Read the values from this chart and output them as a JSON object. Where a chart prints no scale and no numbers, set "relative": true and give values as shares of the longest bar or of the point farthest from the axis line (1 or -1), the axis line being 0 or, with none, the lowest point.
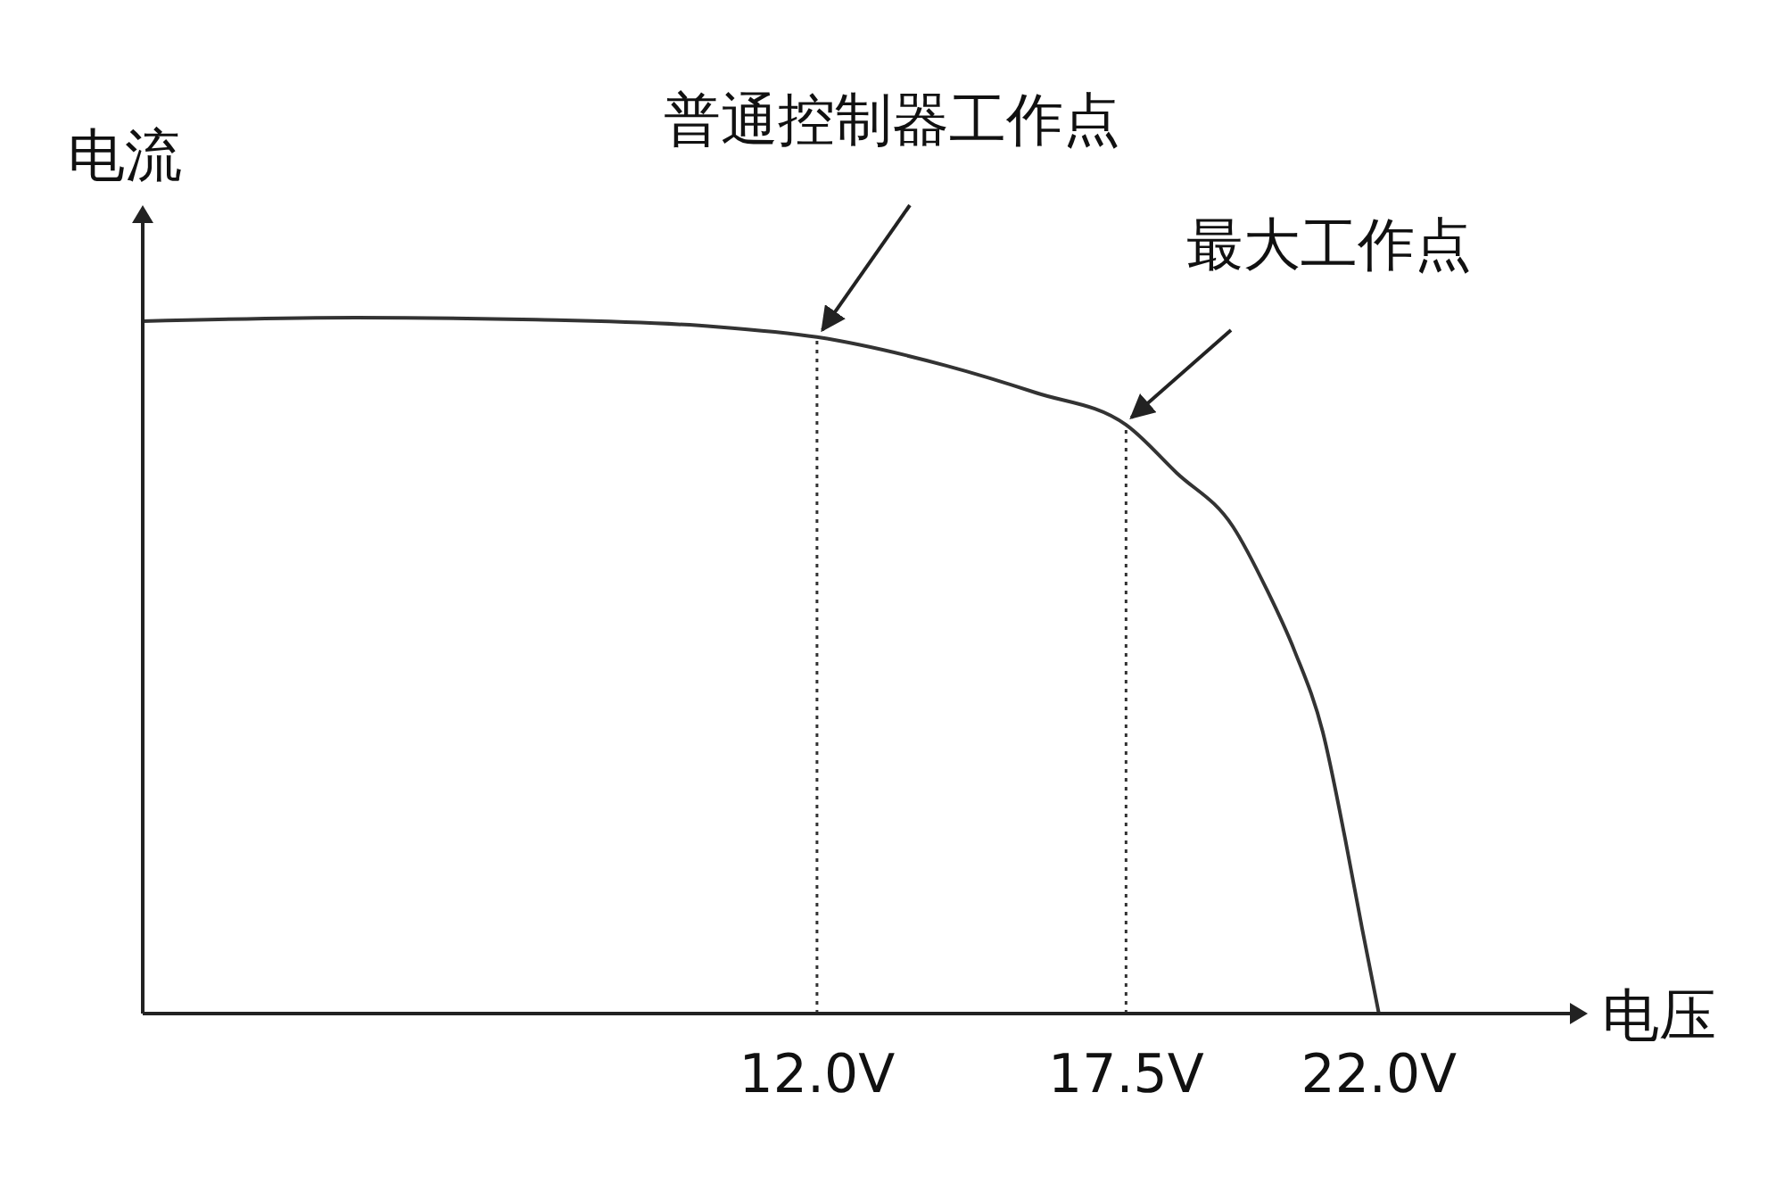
{
  "chart_data": {
    "type": "line",
    "relative": true,
    "xlabel": "电压",
    "ylabel": "电流",
    "xlim": [
      0,
      25.4
    ],
    "xticks": [
      {
        "value": 12,
        "label": "12.0V"
      },
      {
        "value": 17.5,
        "label": "17.5V"
      },
      {
        "value": 22,
        "label": "22.0V"
      }
    ],
    "x": [
      0,
      3.8,
      7.0,
      10.2,
      12.0,
      14.3,
      15.9,
      17.5,
      18.4,
      19.4,
      20.0,
      20.5,
      21.0,
      21.4,
      21.7,
      22.0
    ],
    "series": [
      {
        "color": "#333333",
        "values": [
          0.995,
          1,
          0.997,
          0.987,
          0.972,
          0.931,
          0.892,
          0.846,
          0.777,
          0.7,
          0.61,
          0.521,
          0.405,
          0.251,
          0.123,
          0
        ]
      }
    ],
    "ref_lines": [
      {
        "axis": "x",
        "value": 12,
        "line_style": "dotted",
        "color": "#333333"
      },
      {
        "axis": "x",
        "value": 17.5,
        "line_style": "dotted",
        "color": "#333333"
      }
    ],
    "annotations": [
      {
        "text": "普通控制器工作点",
        "x": 12,
        "y": 0.972
      },
      {
        "text": "最大工作点",
        "x": 17.5,
        "y": 0.846
      }
    ],
    "grid": false,
    "marker": "none",
    "line_style": "solid"
  }
}
